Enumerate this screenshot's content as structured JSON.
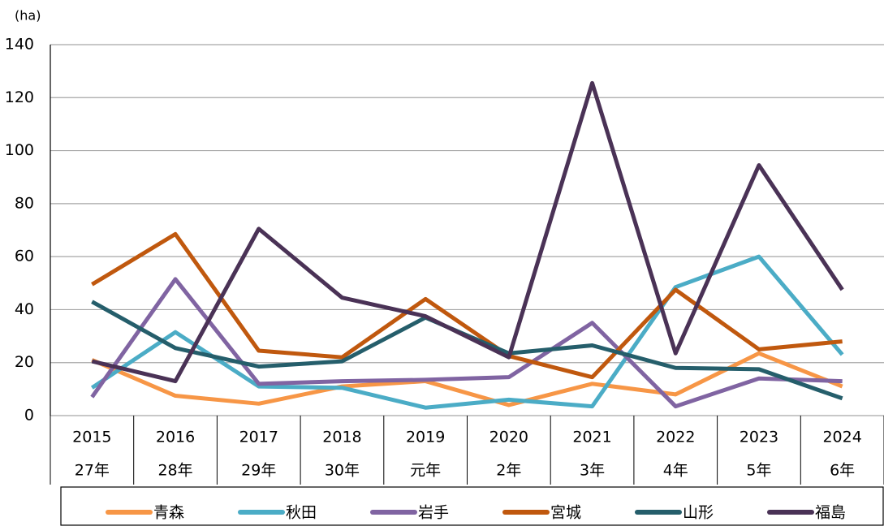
{
  "chart_data": {
    "type": "line",
    "y_unit": "(ha)",
    "categories": [
      "2015",
      "2016",
      "2017",
      "2018",
      "2019",
      "2020",
      "2021",
      "2022",
      "2023",
      "2024"
    ],
    "categories_era": [
      "27年",
      "28年",
      "29年",
      "30年",
      "元年",
      "2年",
      "3年",
      "4年",
      "5年",
      "6年"
    ],
    "ylim": [
      0,
      140
    ],
    "yticks": [
      0,
      20,
      40,
      60,
      80,
      100,
      120,
      140
    ],
    "grid": true,
    "legend": "bottom",
    "series": [
      {
        "name": "青森",
        "color": "#f79646",
        "values": [
          21,
          7.5,
          4.5,
          11,
          13,
          4,
          12,
          8,
          23.5,
          11
        ]
      },
      {
        "name": "秋田",
        "color": "#4bacc6",
        "values": [
          10.5,
          31.5,
          11,
          10.5,
          3,
          6,
          3.5,
          48.5,
          60,
          23
        ]
      },
      {
        "name": "岩手",
        "color": "#8064a2",
        "values": [
          7,
          51.5,
          12,
          13,
          13.5,
          14.5,
          35,
          3.5,
          14,
          13
        ]
      },
      {
        "name": "宮城",
        "color": "#c0580e",
        "values": [
          49.5,
          68.5,
          24.5,
          22,
          44,
          22.5,
          14.5,
          47.5,
          25,
          28
        ]
      },
      {
        "name": "山形",
        "color": "#255e6b",
        "values": [
          43,
          25.5,
          18.5,
          20.5,
          37,
          23.5,
          26.5,
          18,
          17.5,
          6.5
        ]
      },
      {
        "name": "福島",
        "color": "#4a3256",
        "values": [
          20.5,
          13,
          70.5,
          44.5,
          37.5,
          22,
          125.5,
          23.5,
          94.5,
          47.5
        ]
      }
    ]
  }
}
